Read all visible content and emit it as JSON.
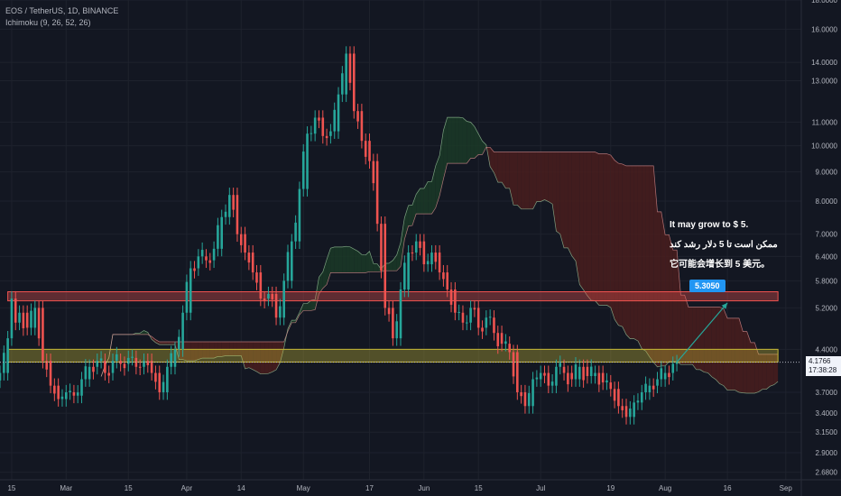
{
  "legend": {
    "symbol": "EOS / TetherUS, 1D, BINANCE",
    "indicator": "Ichimoku (9, 26, 52, 26)"
  },
  "annotation": {
    "line1": "It may grow to $ 5.",
    "line2": "ممکن است تا 5 دلار رشد کند",
    "line3": "它可能会增长到 5 美元。",
    "target_label": "5.3050"
  },
  "last_price": {
    "value": "4.1766",
    "countdown": "17:38:28"
  },
  "colors": {
    "background": "#131722",
    "up": "#26a69a",
    "down": "#ef5350",
    "resistance_zone": "#ef5350",
    "support_zone": "#c8b936",
    "cloud_bull": "#1b3a27",
    "cloud_bear": "#4a1d1d",
    "projection": "#26a69a",
    "target_tag": "#2196f3"
  },
  "chart_data": {
    "type": "candlestick",
    "y_scale": "log",
    "ylim": [
      2.6,
      18.0
    ],
    "y_ticks": [
      "18.0000",
      "16.0000",
      "14.0000",
      "13.0000",
      "11.0000",
      "10.0000",
      "9.0000",
      "8.0000",
      "7.0000",
      "6.4000",
      "5.8000",
      "5.2000",
      "4.4000",
      "3.7000",
      "3.4000",
      "3.1500",
      "2.9000",
      "2.6800"
    ],
    "y_tick_values": [
      18.0,
      16.0,
      14.0,
      13.0,
      11.0,
      10.0,
      9.0,
      8.0,
      7.0,
      6.4,
      5.8,
      5.2,
      4.4,
      3.7,
      3.4,
      3.15,
      2.9,
      2.68
    ],
    "x_ticks": [
      "15",
      "Mar",
      "15",
      "Apr",
      "14",
      "May",
      "17",
      "Jun",
      "15",
      "Jul",
      "19",
      "Aug",
      "16",
      "Sep"
    ],
    "x_tick_days": [
      0,
      14,
      30,
      45,
      59,
      75,
      92,
      106,
      120,
      136,
      154,
      168,
      184,
      199
    ],
    "x_domain_days": [
      -3,
      203
    ],
    "grid": true,
    "zones": [
      {
        "name": "resistance",
        "low": 5.35,
        "high": 5.55
      },
      {
        "name": "support",
        "low": 4.18,
        "high": 4.4
      }
    ],
    "target": 5.305,
    "last_price": 4.1766,
    "closes": [
      [
        -3,
        4.0
      ],
      [
        -1,
        4.6
      ],
      [
        0,
        5.4
      ],
      [
        1,
        4.9
      ],
      [
        2,
        5.1
      ],
      [
        4,
        4.8
      ],
      [
        6,
        5.2
      ],
      [
        8,
        4.2
      ],
      [
        10,
        3.8
      ],
      [
        12,
        3.6
      ],
      [
        14,
        3.7
      ],
      [
        16,
        3.65
      ],
      [
        18,
        3.9
      ],
      [
        20,
        4.1
      ],
      [
        22,
        4.2
      ],
      [
        24,
        4.0
      ],
      [
        26,
        4.2
      ],
      [
        28,
        4.15
      ],
      [
        30,
        4.25
      ],
      [
        32,
        4.1
      ],
      [
        34,
        4.2
      ],
      [
        36,
        4.0
      ],
      [
        38,
        3.7
      ],
      [
        40,
        4.1
      ],
      [
        42,
        4.4
      ],
      [
        44,
        5.1
      ],
      [
        46,
        6.1
      ],
      [
        48,
        6.4
      ],
      [
        50,
        6.3
      ],
      [
        52,
        6.6
      ],
      [
        54,
        7.5
      ],
      [
        56,
        8.2
      ],
      [
        58,
        7.0
      ],
      [
        60,
        6.5
      ],
      [
        62,
        6.0
      ],
      [
        64,
        5.4
      ],
      [
        66,
        5.5
      ],
      [
        68,
        5.0
      ],
      [
        70,
        5.8
      ],
      [
        72,
        6.8
      ],
      [
        74,
        8.4
      ],
      [
        76,
        10.5
      ],
      [
        78,
        11.2
      ],
      [
        80,
        10.4
      ],
      [
        82,
        10.6
      ],
      [
        84,
        12.3
      ],
      [
        86,
        14.5
      ],
      [
        88,
        11.5
      ],
      [
        90,
        10.2
      ],
      [
        92,
        9.4
      ],
      [
        94,
        7.3
      ],
      [
        96,
        5.2
      ],
      [
        98,
        4.6
      ],
      [
        100,
        5.6
      ],
      [
        102,
        6.5
      ],
      [
        104,
        6.8
      ],
      [
        106,
        6.2
      ],
      [
        108,
        6.5
      ],
      [
        110,
        6.0
      ],
      [
        112,
        5.6
      ],
      [
        114,
        5.1
      ],
      [
        116,
        4.9
      ],
      [
        118,
        5.2
      ],
      [
        120,
        4.8
      ],
      [
        122,
        5.0
      ],
      [
        124,
        4.7
      ],
      [
        126,
        4.5
      ],
      [
        128,
        4.35
      ],
      [
        130,
        3.7
      ],
      [
        132,
        3.5
      ],
      [
        134,
        3.9
      ],
      [
        136,
        4.0
      ],
      [
        138,
        3.8
      ],
      [
        140,
        4.1
      ],
      [
        142,
        4.0
      ],
      [
        144,
        3.9
      ],
      [
        146,
        4.1
      ],
      [
        148,
        3.95
      ],
      [
        150,
        4.0
      ],
      [
        152,
        3.85
      ],
      [
        154,
        3.75
      ],
      [
        156,
        3.5
      ],
      [
        158,
        3.35
      ],
      [
        160,
        3.55
      ],
      [
        162,
        3.7
      ],
      [
        164,
        3.8
      ],
      [
        166,
        3.9
      ],
      [
        168,
        4.0
      ],
      [
        170,
        4.15
      ],
      [
        171,
        4.1766
      ]
    ]
  }
}
